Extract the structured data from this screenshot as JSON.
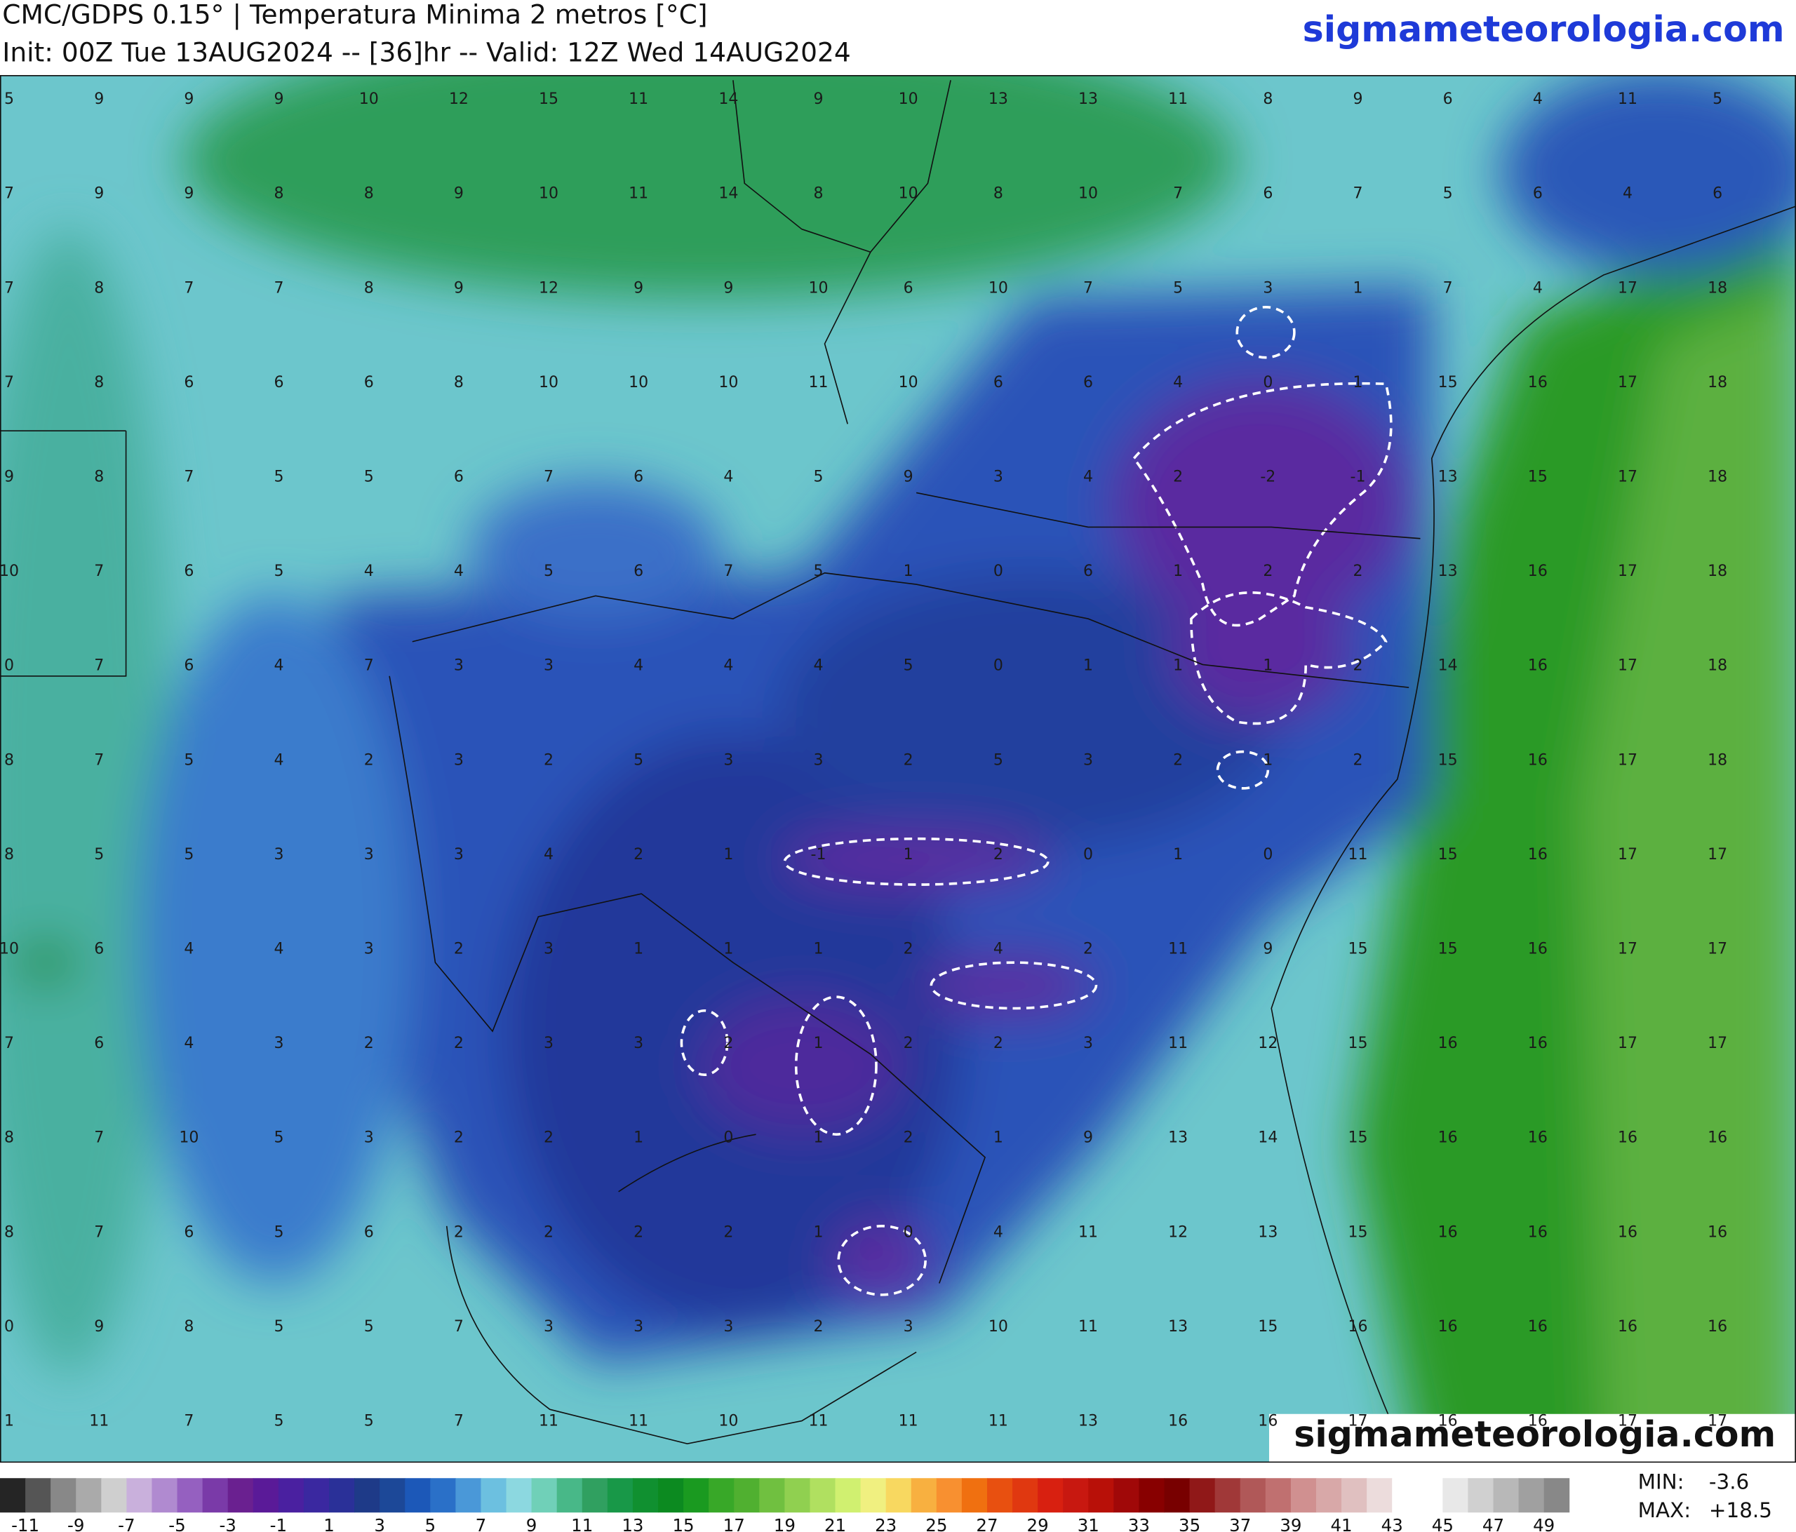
{
  "header": {
    "title": "CMC/GDPS 0.15° | Temperatura Minima 2 metros [°C]",
    "subtitle": "Init: 00Z Tue 13AUG2024 -- [36]hr -- Valid: 12Z Wed 14AUG2024",
    "site": "sigmameteorologia.com"
  },
  "map": {
    "watermark": "sigmameteorologia.com",
    "grid": [
      [
        5,
        9,
        9,
        9,
        10,
        12,
        15,
        11,
        14,
        9,
        10,
        13,
        13,
        11,
        8,
        9,
        6,
        4,
        11,
        5
      ],
      [
        7,
        9,
        9,
        8,
        8,
        9,
        10,
        11,
        14,
        8,
        10,
        8,
        10,
        7,
        6,
        7,
        5,
        6,
        4,
        6
      ],
      [
        7,
        8,
        7,
        7,
        8,
        9,
        12,
        9,
        9,
        10,
        6,
        10,
        7,
        5,
        3,
        1,
        7,
        4,
        17,
        18
      ],
      [
        7,
        8,
        6,
        6,
        6,
        8,
        10,
        10,
        10,
        11,
        10,
        6,
        6,
        4,
        0,
        1,
        15,
        16,
        17,
        18
      ],
      [
        9,
        8,
        7,
        5,
        5,
        6,
        7,
        6,
        4,
        5,
        9,
        3,
        4,
        2,
        -2,
        -1,
        13,
        15,
        17,
        18
      ],
      [
        10,
        7,
        6,
        5,
        4,
        4,
        5,
        6,
        7,
        5,
        1,
        0,
        6,
        1,
        2,
        2,
        13,
        16,
        17,
        18
      ],
      [
        0,
        7,
        6,
        4,
        7,
        3,
        3,
        4,
        4,
        4,
        5,
        0,
        1,
        1,
        1,
        2,
        14,
        16,
        17,
        18
      ],
      [
        8,
        7,
        5,
        4,
        2,
        3,
        2,
        5,
        3,
        3,
        2,
        5,
        3,
        2,
        1,
        2,
        15,
        16,
        17,
        18
      ],
      [
        8,
        5,
        5,
        3,
        3,
        3,
        4,
        2,
        1,
        -1,
        1,
        2,
        0,
        1,
        0,
        11,
        15,
        16,
        17,
        17
      ],
      [
        10,
        6,
        4,
        4,
        3,
        2,
        3,
        1,
        1,
        1,
        2,
        4,
        2,
        11,
        9,
        15,
        15,
        16,
        17,
        17
      ],
      [
        7,
        6,
        4,
        3,
        2,
        2,
        3,
        3,
        2,
        1,
        2,
        2,
        3,
        11,
        12,
        15,
        16,
        16,
        17,
        17
      ],
      [
        8,
        7,
        10,
        5,
        3,
        2,
        2,
        1,
        0,
        1,
        2,
        1,
        9,
        13,
        14,
        15,
        16,
        16,
        16,
        16
      ],
      [
        8,
        7,
        6,
        5,
        6,
        2,
        2,
        2,
        2,
        1,
        0,
        4,
        11,
        12,
        13,
        15,
        16,
        16,
        16,
        16
      ],
      [
        0,
        9,
        8,
        5,
        5,
        7,
        3,
        3,
        3,
        2,
        3,
        10,
        11,
        13,
        15,
        16,
        16,
        16,
        16,
        16
      ],
      [
        1,
        11,
        7,
        5,
        5,
        7,
        11,
        11,
        10,
        11,
        11,
        11,
        13,
        16,
        16,
        17,
        16,
        16,
        17,
        17
      ]
    ]
  },
  "colorbar": {
    "ticks": [
      -11,
      -9,
      -7,
      -5,
      -3,
      -1,
      1,
      3,
      5,
      7,
      9,
      11,
      13,
      15,
      17,
      19,
      21,
      23,
      25,
      27,
      29,
      31,
      33,
      35,
      37,
      39,
      41,
      43,
      45,
      47,
      49
    ]
  },
  "stats": {
    "min_label": "MIN:",
    "min": "-3.6",
    "max_label": "MAX:",
    "max": "+18.5"
  }
}
